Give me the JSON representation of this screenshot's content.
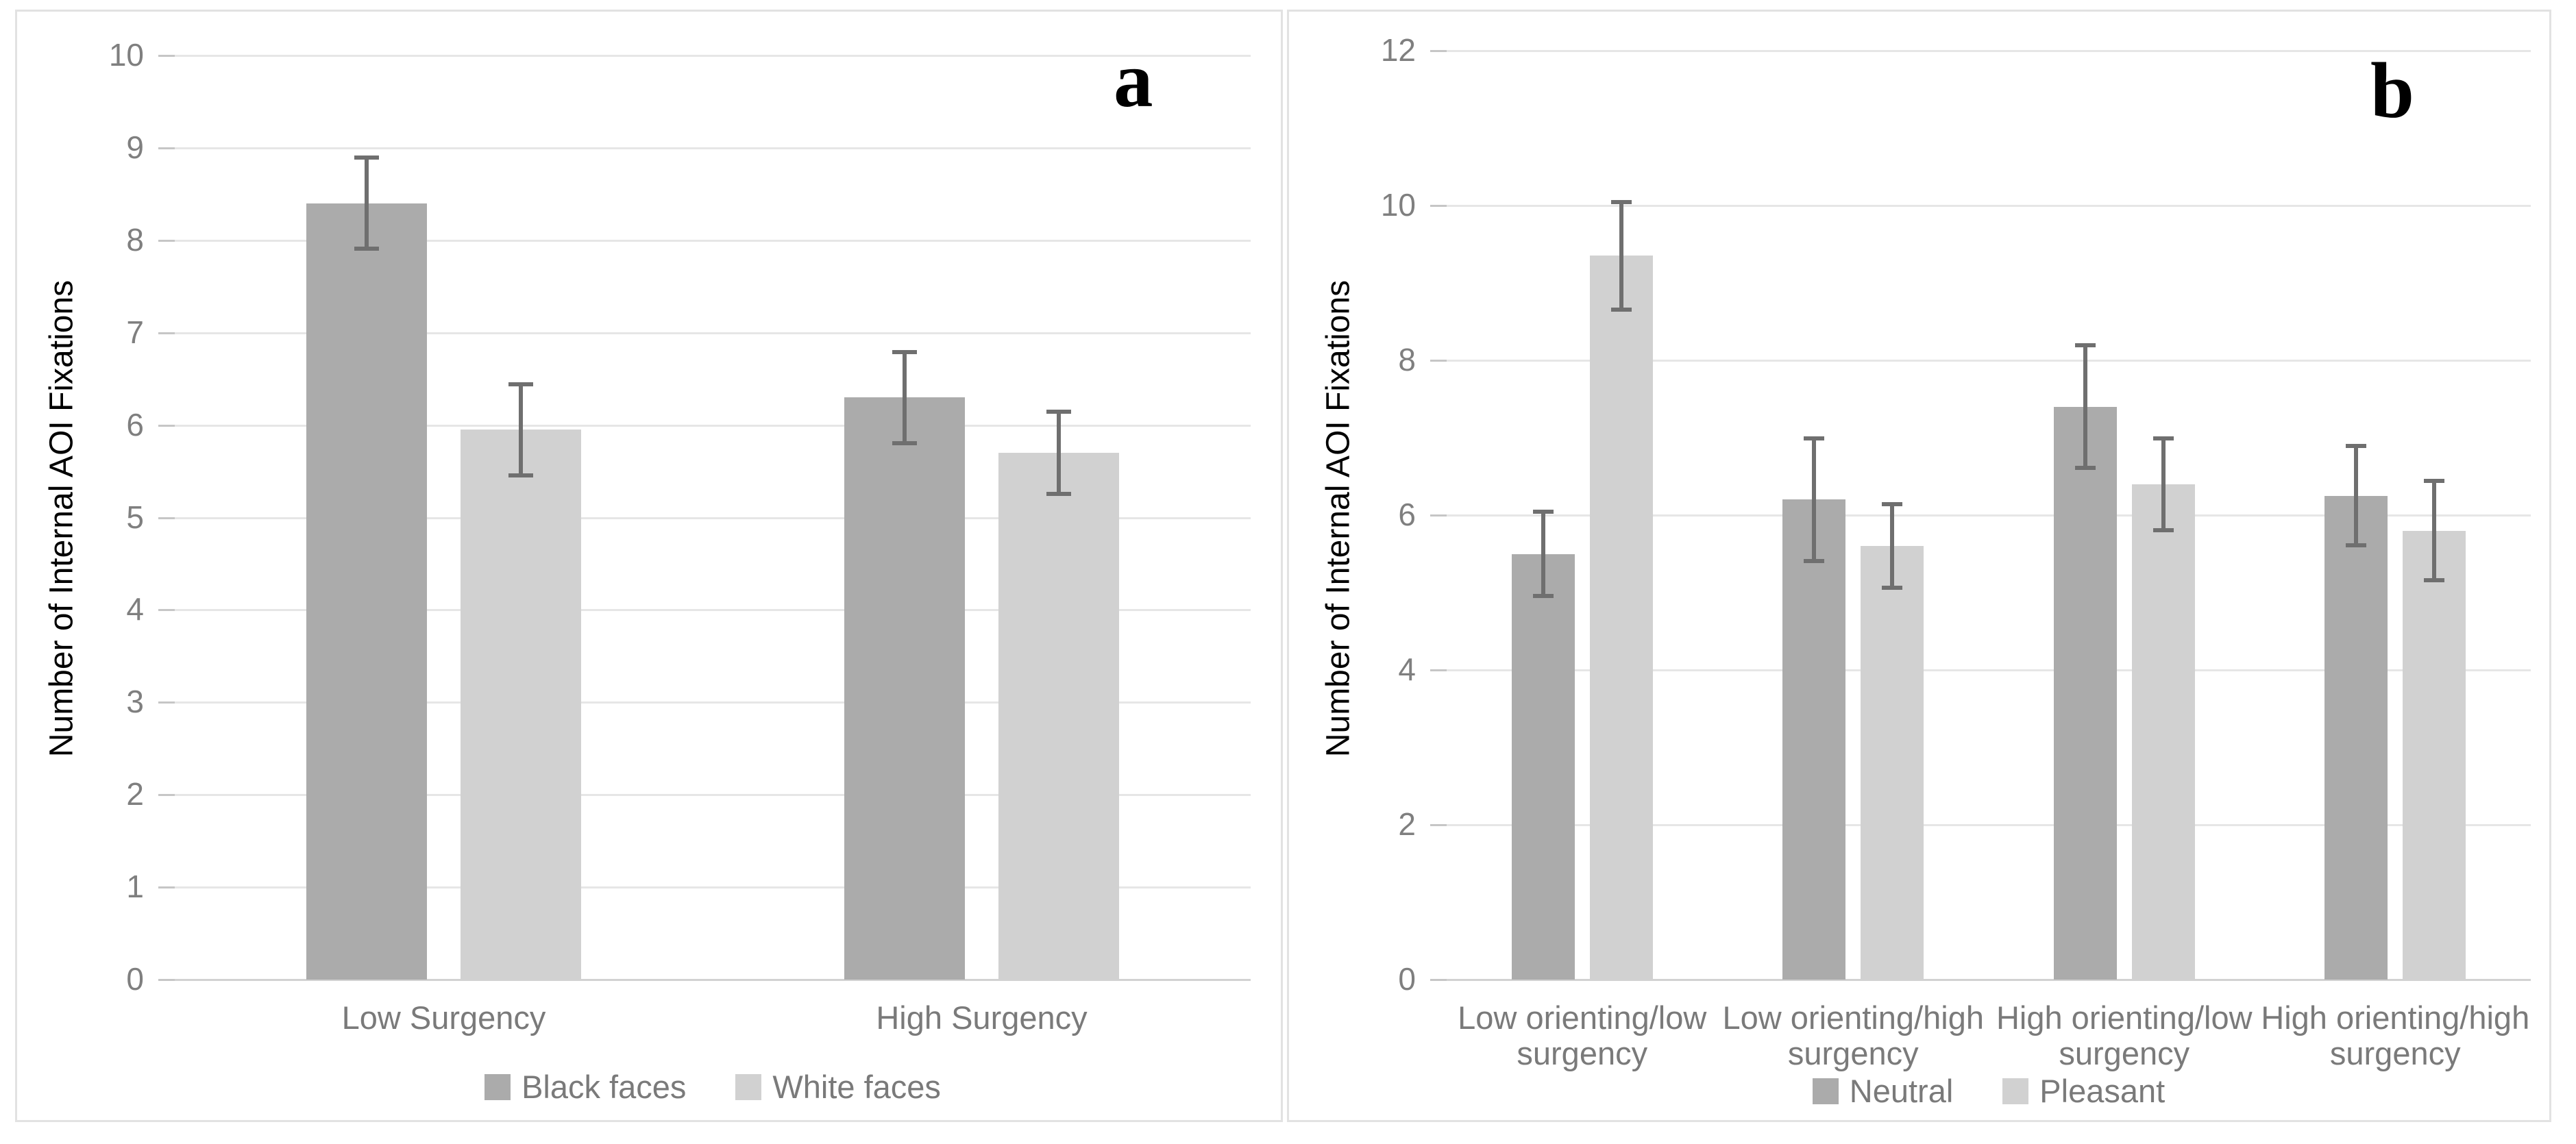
{
  "figure": {
    "background": "#ffffff",
    "panel_letters": [
      "a",
      "b"
    ]
  },
  "colors": {
    "series_dark": "#ababab",
    "series_light": "#d1d1d1",
    "error_bar": "#6f6f6f",
    "gridline": "#e6e6e6",
    "axis_baseline": "#d2d2d2",
    "tick_stub": "#c6c6c6",
    "axis_text": "#7f7f7f",
    "label_text": "#7a7a7a",
    "panel_border": "#e2e2e2",
    "panel_letter_color": "#000000"
  },
  "chart_data": [
    {
      "type": "bar",
      "panel_letter": "a",
      "title": "",
      "xlabel": "",
      "ylabel": "Number of Internal AOI Fixations",
      "ylim": [
        0,
        10
      ],
      "yticks": [
        0,
        1,
        2,
        3,
        4,
        5,
        6,
        7,
        8,
        9,
        10
      ],
      "grid": true,
      "legend_position": "bottom",
      "error_bars": true,
      "categories": [
        "Low Surgency",
        "High Surgency"
      ],
      "series": [
        {
          "name": "Black faces",
          "color_role": "dark",
          "values": [
            8.4,
            6.3
          ],
          "errors": [
            0.5,
            0.5
          ]
        },
        {
          "name": "White faces",
          "color_role": "light",
          "values": [
            5.95,
            5.7
          ],
          "errors": [
            0.5,
            0.45
          ]
        }
      ]
    },
    {
      "type": "bar",
      "panel_letter": "b",
      "title": "",
      "xlabel": "",
      "ylabel": "Number of Internal AOI Fixations",
      "ylim": [
        0,
        12
      ],
      "yticks": [
        0,
        2,
        4,
        6,
        8,
        10,
        12
      ],
      "grid": true,
      "legend_position": "bottom",
      "error_bars": true,
      "categories": [
        "Low orienting/low surgency",
        "Low orienting/high surgency",
        "High orienting/low surgency",
        "High orienting/high surgency"
      ],
      "series": [
        {
          "name": "Neutral",
          "color_role": "dark",
          "values": [
            5.5,
            6.2,
            7.4,
            6.25
          ],
          "errors": [
            0.55,
            0.8,
            0.8,
            0.65
          ]
        },
        {
          "name": "Pleasant",
          "color_role": "light",
          "values": [
            9.35,
            5.6,
            6.4,
            5.8
          ],
          "errors": [
            0.7,
            0.55,
            0.6,
            0.65
          ]
        }
      ]
    }
  ]
}
